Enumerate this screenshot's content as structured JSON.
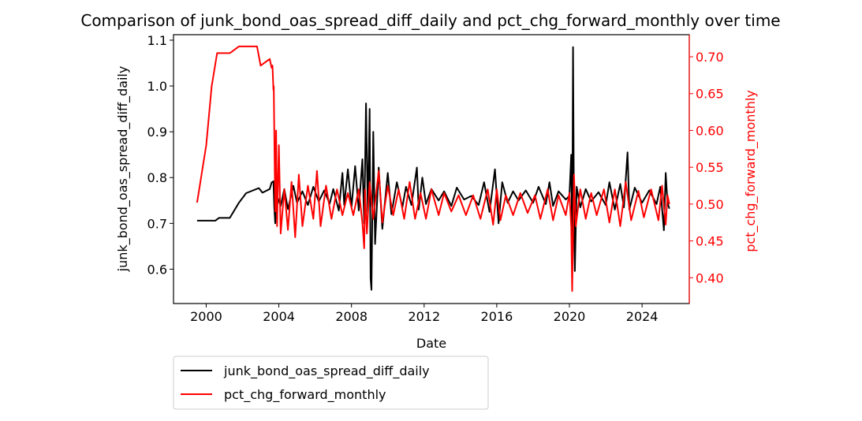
{
  "chart_data": {
    "type": "line",
    "title": "Comparison of junk_bond_oas_spread_diff_daily and pct_chg_forward_monthly over time",
    "xlabel": "Date",
    "ylabel_left": "junk_bond_oas_spread_diff_daily",
    "ylabel_right": "pct_chg_forward_monthly",
    "xlim": [
      1998.2,
      2026.6
    ],
    "ylim_left": [
      0.525,
      1.112
    ],
    "ylim_right": [
      0.365,
      0.73
    ],
    "x_ticks": [
      2000,
      2004,
      2008,
      2012,
      2016,
      2020,
      2024
    ],
    "x_tick_labels": [
      "2000",
      "2004",
      "2008",
      "2012",
      "2016",
      "2020",
      "2024"
    ],
    "y_ticks_left": [
      0.6,
      0.7,
      0.8,
      0.9,
      1.0,
      1.1
    ],
    "y_tick_labels_left": [
      "0.6",
      "0.7",
      "0.8",
      "0.9",
      "1.0",
      "1.1"
    ],
    "y_ticks_right": [
      0.4,
      0.45,
      0.5,
      0.55,
      0.6,
      0.65,
      0.7
    ],
    "y_tick_labels_right": [
      "0.40",
      "0.45",
      "0.50",
      "0.55",
      "0.60",
      "0.65",
      "0.70"
    ],
    "grid": false,
    "legend_position": "below-left",
    "series": [
      {
        "name": "junk_bond_oas_spread_diff_daily",
        "axis": "left",
        "color": "#000000",
        "points": [
          [
            1999.5,
            0.706
          ],
          [
            2000.0,
            0.706
          ],
          [
            2000.5,
            0.706
          ],
          [
            2000.7,
            0.712
          ],
          [
            2001.0,
            0.712
          ],
          [
            2001.3,
            0.712
          ],
          [
            2001.8,
            0.745
          ],
          [
            2002.2,
            0.766
          ],
          [
            2002.9,
            0.777
          ],
          [
            2003.1,
            0.767
          ],
          [
            2003.5,
            0.775
          ],
          [
            2003.6,
            0.789
          ],
          [
            2003.7,
            0.792
          ],
          [
            2003.75,
            0.735
          ],
          [
            2003.8,
            0.7
          ],
          [
            2003.9,
            0.76
          ],
          [
            2004.1,
            0.738
          ],
          [
            2004.3,
            0.775
          ],
          [
            2004.5,
            0.731
          ],
          [
            2004.8,
            0.782
          ],
          [
            2005.0,
            0.745
          ],
          [
            2005.3,
            0.77
          ],
          [
            2005.6,
            0.74
          ],
          [
            2005.9,
            0.78
          ],
          [
            2006.2,
            0.748
          ],
          [
            2006.5,
            0.772
          ],
          [
            2006.8,
            0.743
          ],
          [
            2007.0,
            0.775
          ],
          [
            2007.3,
            0.728
          ],
          [
            2007.5,
            0.81
          ],
          [
            2007.6,
            0.74
          ],
          [
            2007.8,
            0.818
          ],
          [
            2008.0,
            0.735
          ],
          [
            2008.2,
            0.825
          ],
          [
            2008.4,
            0.728
          ],
          [
            2008.6,
            0.84
          ],
          [
            2008.7,
            0.7
          ],
          [
            2008.8,
            0.962
          ],
          [
            2008.9,
            0.72
          ],
          [
            2009.0,
            0.95
          ],
          [
            2009.05,
            0.58
          ],
          [
            2009.1,
            0.555
          ],
          [
            2009.2,
            0.9
          ],
          [
            2009.3,
            0.655
          ],
          [
            2009.5,
            0.822
          ],
          [
            2009.7,
            0.688
          ],
          [
            2010.0,
            0.81
          ],
          [
            2010.2,
            0.72
          ],
          [
            2010.5,
            0.79
          ],
          [
            2010.8,
            0.735
          ],
          [
            2011.0,
            0.78
          ],
          [
            2011.3,
            0.74
          ],
          [
            2011.6,
            0.822
          ],
          [
            2011.7,
            0.73
          ],
          [
            2011.9,
            0.8
          ],
          [
            2012.1,
            0.742
          ],
          [
            2012.4,
            0.775
          ],
          [
            2012.8,
            0.75
          ],
          [
            2013.1,
            0.77
          ],
          [
            2013.5,
            0.738
          ],
          [
            2013.8,
            0.778
          ],
          [
            2014.2,
            0.752
          ],
          [
            2014.6,
            0.76
          ],
          [
            2015.0,
            0.74
          ],
          [
            2015.3,
            0.79
          ],
          [
            2015.6,
            0.725
          ],
          [
            2015.9,
            0.818
          ],
          [
            2016.1,
            0.7
          ],
          [
            2016.3,
            0.79
          ],
          [
            2016.6,
            0.745
          ],
          [
            2016.9,
            0.77
          ],
          [
            2017.2,
            0.75
          ],
          [
            2017.6,
            0.772
          ],
          [
            2018.0,
            0.745
          ],
          [
            2018.3,
            0.78
          ],
          [
            2018.7,
            0.742
          ],
          [
            2018.9,
            0.79
          ],
          [
            2019.1,
            0.738
          ],
          [
            2019.4,
            0.77
          ],
          [
            2019.8,
            0.752
          ],
          [
            2020.0,
            0.76
          ],
          [
            2020.1,
            0.85
          ],
          [
            2020.15,
            0.64
          ],
          [
            2020.2,
            1.085
          ],
          [
            2020.25,
            0.72
          ],
          [
            2020.3,
            0.596
          ],
          [
            2020.4,
            0.78
          ],
          [
            2020.6,
            0.735
          ],
          [
            2020.9,
            0.775
          ],
          [
            2021.2,
            0.748
          ],
          [
            2021.6,
            0.768
          ],
          [
            2022.0,
            0.74
          ],
          [
            2022.2,
            0.79
          ],
          [
            2022.5,
            0.73
          ],
          [
            2022.8,
            0.786
          ],
          [
            2023.0,
            0.735
          ],
          [
            2023.2,
            0.855
          ],
          [
            2023.3,
            0.73
          ],
          [
            2023.6,
            0.778
          ],
          [
            2024.0,
            0.745
          ],
          [
            2024.4,
            0.772
          ],
          [
            2024.8,
            0.742
          ],
          [
            2025.0,
            0.78
          ],
          [
            2025.2,
            0.685
          ],
          [
            2025.3,
            0.81
          ],
          [
            2025.4,
            0.745
          ],
          [
            2025.5,
            0.732
          ]
        ]
      },
      {
        "name": "pct_chg_forward_monthly",
        "axis": "right",
        "color": "#ff0000",
        "points": [
          [
            1999.5,
            0.502
          ],
          [
            2000.0,
            0.58
          ],
          [
            2000.3,
            0.66
          ],
          [
            2000.6,
            0.705
          ],
          [
            2001.0,
            0.705
          ],
          [
            2001.3,
            0.705
          ],
          [
            2001.8,
            0.714
          ],
          [
            2002.3,
            0.714
          ],
          [
            2002.8,
            0.714
          ],
          [
            2003.0,
            0.688
          ],
          [
            2003.5,
            0.697
          ],
          [
            2003.6,
            0.685
          ],
          [
            2003.65,
            0.688
          ],
          [
            2003.7,
            0.655
          ],
          [
            2003.72,
            0.66
          ],
          [
            2003.8,
            0.49
          ],
          [
            2003.85,
            0.6
          ],
          [
            2003.9,
            0.47
          ],
          [
            2004.0,
            0.58
          ],
          [
            2004.1,
            0.46
          ],
          [
            2004.3,
            0.52
          ],
          [
            2004.5,
            0.465
          ],
          [
            2004.7,
            0.53
          ],
          [
            2004.9,
            0.455
          ],
          [
            2005.1,
            0.54
          ],
          [
            2005.3,
            0.47
          ],
          [
            2005.6,
            0.525
          ],
          [
            2005.9,
            0.48
          ],
          [
            2006.1,
            0.545
          ],
          [
            2006.3,
            0.47
          ],
          [
            2006.6,
            0.525
          ],
          [
            2006.9,
            0.48
          ],
          [
            2007.2,
            0.52
          ],
          [
            2007.5,
            0.485
          ],
          [
            2007.8,
            0.515
          ],
          [
            2008.1,
            0.485
          ],
          [
            2008.4,
            0.52
          ],
          [
            2008.6,
            0.475
          ],
          [
            2008.7,
            0.44
          ],
          [
            2008.75,
            0.52
          ],
          [
            2008.85,
            0.46
          ],
          [
            2009.0,
            0.53
          ],
          [
            2009.2,
            0.48
          ],
          [
            2009.5,
            0.545
          ],
          [
            2009.7,
            0.475
          ],
          [
            2010.0,
            0.525
          ],
          [
            2010.3,
            0.485
          ],
          [
            2010.6,
            0.52
          ],
          [
            2010.9,
            0.48
          ],
          [
            2011.2,
            0.53
          ],
          [
            2011.5,
            0.48
          ],
          [
            2011.8,
            0.515
          ],
          [
            2012.1,
            0.48
          ],
          [
            2012.4,
            0.52
          ],
          [
            2012.8,
            0.485
          ],
          [
            2013.1,
            0.515
          ],
          [
            2013.5,
            0.49
          ],
          [
            2013.9,
            0.512
          ],
          [
            2014.3,
            0.485
          ],
          [
            2014.7,
            0.512
          ],
          [
            2015.1,
            0.48
          ],
          [
            2015.5,
            0.52
          ],
          [
            2015.8,
            0.472
          ],
          [
            2016.0,
            0.52
          ],
          [
            2016.2,
            0.478
          ],
          [
            2016.5,
            0.512
          ],
          [
            2016.9,
            0.485
          ],
          [
            2017.3,
            0.515
          ],
          [
            2017.7,
            0.488
          ],
          [
            2018.1,
            0.512
          ],
          [
            2018.4,
            0.48
          ],
          [
            2018.8,
            0.52
          ],
          [
            2019.1,
            0.478
          ],
          [
            2019.4,
            0.512
          ],
          [
            2019.8,
            0.485
          ],
          [
            2020.0,
            0.515
          ],
          [
            2020.1,
            0.47
          ],
          [
            2020.15,
            0.382
          ],
          [
            2020.25,
            0.54
          ],
          [
            2020.35,
            0.47
          ],
          [
            2020.6,
            0.52
          ],
          [
            2020.9,
            0.48
          ],
          [
            2021.2,
            0.515
          ],
          [
            2021.5,
            0.485
          ],
          [
            2021.9,
            0.52
          ],
          [
            2022.2,
            0.475
          ],
          [
            2022.5,
            0.52
          ],
          [
            2022.8,
            0.47
          ],
          [
            2023.1,
            0.53
          ],
          [
            2023.4,
            0.478
          ],
          [
            2023.8,
            0.518
          ],
          [
            2024.1,
            0.482
          ],
          [
            2024.5,
            0.52
          ],
          [
            2024.9,
            0.478
          ],
          [
            2025.1,
            0.525
          ],
          [
            2025.3,
            0.472
          ],
          [
            2025.4,
            0.512
          ],
          [
            2025.5,
            0.5
          ]
        ]
      }
    ]
  }
}
